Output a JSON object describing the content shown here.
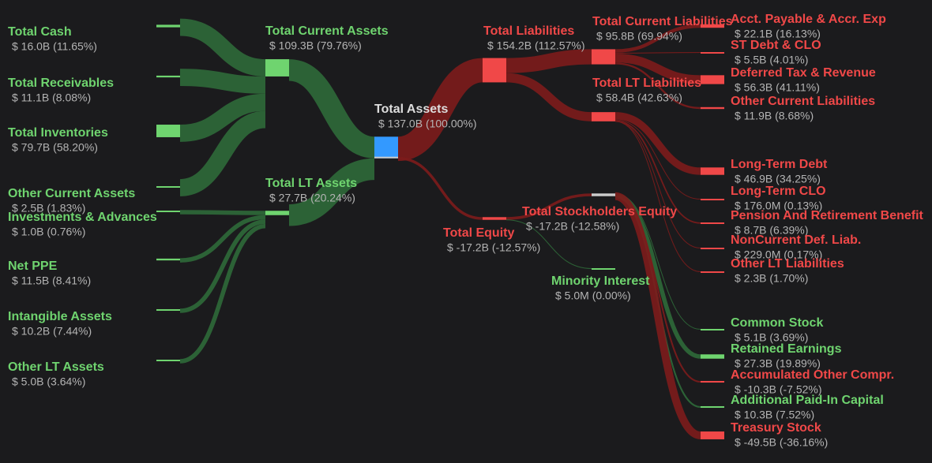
{
  "title": null,
  "nodes": [
    {
      "name": "Total Cash",
      "detail": "$ 16.0B (11.65%)",
      "value": 16.0,
      "color": "#6fd46f"
    },
    {
      "name": "Total Receivables",
      "detail": "$ 11.1B (8.08%)",
      "value": 11.1,
      "color": "#6fd46f"
    },
    {
      "name": "Total Inventories",
      "detail": "$ 79.7B (58.20%)",
      "value": 79.7,
      "color": "#6fd46f"
    },
    {
      "name": "Other Current Assets",
      "detail": "$ 2.5B (1.83%)",
      "value": 2.5,
      "color": "#6fd46f"
    },
    {
      "name": "Investments & Advances",
      "detail": "$ 1.0B (0.76%)",
      "value": 1.0,
      "color": "#6fd46f"
    },
    {
      "name": "Net PPE",
      "detail": "$ 11.5B (8.41%)",
      "value": 11.5,
      "color": "#6fd46f"
    },
    {
      "name": "Intangible Assets",
      "detail": "$ 10.2B (7.44%)",
      "value": 10.2,
      "color": "#6fd46f"
    },
    {
      "name": "Other LT Assets",
      "detail": "$ 5.0B (3.64%)",
      "value": 5.0,
      "color": "#6fd46f"
    },
    {
      "name": "Total Current Assets",
      "detail": "$ 109.3B (79.76%)",
      "value": 109.3,
      "color": "#6fd46f"
    },
    {
      "name": "Total LT Assets",
      "detail": "$ 27.7B (20.24%)",
      "value": 27.7,
      "color": "#6fd46f"
    },
    {
      "name": "Total Assets",
      "detail": "$ 137.0B (100.00%)",
      "value": 137.0,
      "color": "#3399ff"
    },
    {
      "name": "Total Liabilities",
      "detail": "$ 154.2B (112.57%)",
      "value": 154.2,
      "color": "#f04848"
    },
    {
      "name": "Total Equity",
      "detail": "$ -17.2B (-12.57%)",
      "value": -17.2,
      "color": "#f04848"
    },
    {
      "name": "Total Current Liabilities",
      "detail": "$ 95.8B (69.94%)",
      "value": 95.8,
      "color": "#f04848"
    },
    {
      "name": "Total LT Liabilities",
      "detail": "$ 58.4B (42.63%)",
      "value": 58.4,
      "color": "#f04848"
    },
    {
      "name": "Total Stockholders Equity",
      "detail": "$ -17.2B (-12.58%)",
      "value": -17.2,
      "color": "#f04848"
    },
    {
      "name": "Minority Interest",
      "detail": "$ 5.0M (0.00%)",
      "value": 0.005,
      "color": "#6fd46f"
    },
    {
      "name": "Acct. Payable & Accr. Exp",
      "detail": "$ 22.1B (16.13%)",
      "value": 22.1,
      "color": "#f04848"
    },
    {
      "name": "ST Debt & CLO",
      "detail": "$ 5.5B (4.01%)",
      "value": 5.5,
      "color": "#f04848"
    },
    {
      "name": "Deferred Tax & Revenue",
      "detail": "$ 56.3B (41.11%)",
      "value": 56.3,
      "color": "#f04848"
    },
    {
      "name": "Other Current Liabilities",
      "detail": "$ 11.9B (8.68%)",
      "value": 11.9,
      "color": "#f04848"
    },
    {
      "name": "Long-Term Debt",
      "detail": "$ 46.9B (34.25%)",
      "value": 46.9,
      "color": "#f04848"
    },
    {
      "name": "Long-Term CLO",
      "detail": "$ 176.0M (0.13%)",
      "value": 0.176,
      "color": "#f04848"
    },
    {
      "name": "Pension And Retirement Benefit",
      "detail": "$ 8.7B (6.39%)",
      "value": 8.7,
      "color": "#f04848"
    },
    {
      "name": "NonCurrent Def. Liab.",
      "detail": "$ 229.0M (0.17%)",
      "value": 0.229,
      "color": "#f04848"
    },
    {
      "name": "Other LT Liabilities",
      "detail": "$ 2.3B (1.70%)",
      "value": 2.3,
      "color": "#f04848"
    },
    {
      "name": "Common Stock",
      "detail": "$ 5.1B (3.69%)",
      "value": 5.1,
      "color": "#6fd46f"
    },
    {
      "name": "Retained Earnings",
      "detail": "$ 27.3B (19.89%)",
      "value": 27.3,
      "color": "#6fd46f"
    },
    {
      "name": "Accumulated Other Compr.",
      "detail": "$ -10.3B (-7.52%)",
      "value": -10.3,
      "color": "#f04848"
    },
    {
      "name": "Additional Paid-In Capital",
      "detail": "$ 10.3B (7.52%)",
      "value": 10.3,
      "color": "#6fd46f"
    },
    {
      "name": "Treasury Stock",
      "detail": "$ -49.5B (-36.16%)",
      "value": -49.5,
      "color": "#f04848"
    }
  ]
}
